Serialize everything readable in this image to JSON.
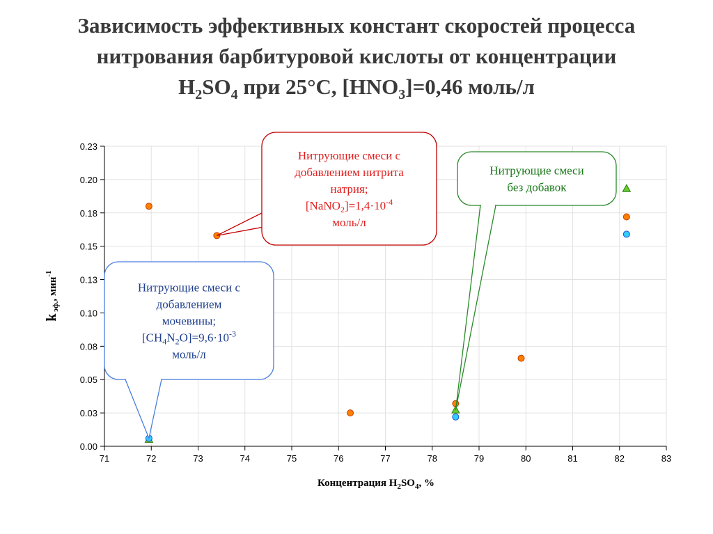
{
  "title": {
    "line1": "Зависимость эффективных констант скоростей процесса",
    "line2": "нитрования барбитуровой кислоты от концентрации",
    "line3_parts": [
      "H",
      "2",
      "SO",
      "4",
      " при 25°C, [HNO",
      "3",
      "]=0,46 моль/л"
    ]
  },
  "chart_data": {
    "type": "scatter",
    "xlabel_parts": [
      "Концентрация H",
      "2",
      "SO",
      "4",
      ", %"
    ],
    "ylabel_parts": [
      "k",
      " эф.",
      ", мин",
      "-1"
    ],
    "xlim": [
      71,
      83
    ],
    "ylim": [
      0,
      0.225
    ],
    "x_ticks": [
      "71",
      "72",
      "73",
      "74",
      "75",
      "76",
      "77",
      "78",
      "79",
      "80",
      "81",
      "82",
      "83"
    ],
    "y_ticks": [
      "0.00",
      "0.03",
      "0.05",
      "0.08",
      "0.10",
      "0.13",
      "0.15",
      "0.18",
      "0.20",
      "0.23"
    ],
    "grid": true,
    "series": [
      {
        "marker": "circle",
        "color": "#ff7f00",
        "stroke": "#c04000",
        "x": [
          71.95,
          73.4,
          76.25,
          78.5,
          79.9,
          82.15
        ],
        "y": [
          0.18,
          0.158,
          0.025,
          0.032,
          0.066,
          0.172
        ]
      },
      {
        "marker": "triangle",
        "color": "#66cc33",
        "stroke": "#2f7a10",
        "x": [
          71.95,
          78.5,
          82.15
        ],
        "y": [
          0.005,
          0.027,
          0.193
        ]
      },
      {
        "marker": "circle",
        "color": "#33ccff",
        "stroke": "#1a4fd0",
        "x": [
          71.95,
          78.5,
          82.15
        ],
        "y": [
          0.006,
          0.022,
          0.159
        ]
      }
    ],
    "annotations": [
      {
        "color": "#e02020",
        "border": "#c00000",
        "lines": [
          [
            "Нитрующие смеси с"
          ],
          [
            "добавлением нитрита"
          ],
          [
            "натрия;"
          ],
          [
            "[NaNO",
            "2",
            "]=1,4·10",
            "-4"
          ],
          [
            "моль/л"
          ]
        ],
        "target": [
          73.4,
          0.158
        ]
      },
      {
        "color": "#1f3f8f",
        "border": "#4a7fe0",
        "lines": [
          [
            "Нитрующие смеси с"
          ],
          [
            "добавлением"
          ],
          [
            "мочевины;"
          ],
          [
            "[CH",
            "4",
            "N",
            "2",
            "O]=9,6·10",
            "-3"
          ],
          [
            "моль/л"
          ]
        ],
        "target": [
          71.95,
          0.006
        ]
      },
      {
        "color": "#1a7a1a",
        "border": "#2a8a2a",
        "lines": [
          [
            "Нитрующие смеси"
          ],
          [
            "без добавок"
          ]
        ],
        "target": [
          78.5,
          0.027
        ]
      }
    ]
  }
}
